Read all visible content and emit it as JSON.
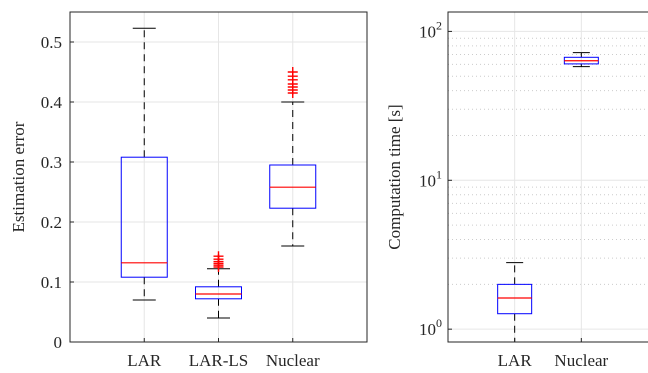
{
  "chart_data": [
    {
      "type": "box",
      "ylabel": "Estimation error",
      "ylim": [
        0,
        0.55
      ],
      "yticks": [
        0,
        0.1,
        0.2,
        0.3,
        0.4,
        0.5
      ],
      "ytick_labels": [
        "0",
        "0.1",
        "0.2",
        "0.3",
        "0.4",
        "0.5"
      ],
      "grid": true,
      "categories": [
        "LAR",
        "LAR-LS",
        "Nuclear"
      ],
      "boxes": [
        {
          "whisker_low": 0.07,
          "q1": 0.108,
          "median": 0.132,
          "q3": 0.308,
          "whisker_high": 0.523,
          "outliers": []
        },
        {
          "whisker_low": 0.04,
          "q1": 0.072,
          "median": 0.08,
          "q3": 0.092,
          "whisker_high": 0.122,
          "outliers": [
            0.125,
            0.128,
            0.131,
            0.134,
            0.138,
            0.143
          ]
        },
        {
          "whisker_low": 0.16,
          "q1": 0.223,
          "median": 0.258,
          "q3": 0.295,
          "whisker_high": 0.4,
          "outliers": [
            0.415,
            0.42,
            0.425,
            0.43,
            0.437,
            0.443,
            0.45
          ]
        }
      ]
    },
    {
      "type": "box",
      "ylabel": "Computation time [s]",
      "yscale": "log",
      "ylim": [
        0.82,
        135
      ],
      "yticks": [
        1,
        10,
        100
      ],
      "ytick_labels": [
        "10^0",
        "10^1",
        "10^2"
      ],
      "grid": true,
      "categories": [
        "LAR",
        "Nuclear"
      ],
      "boxes": [
        {
          "whisker_low": 0.82,
          "q1": 1.27,
          "median": 1.62,
          "q3": 2.0,
          "whisker_high": 2.8,
          "outliers": []
        },
        {
          "whisker_low": 58,
          "q1": 60.5,
          "median": 63.5,
          "q3": 67,
          "whisker_high": 72,
          "outliers": []
        }
      ]
    }
  ],
  "colors": {
    "box": "#0000ff",
    "median": "#ff0000",
    "whisker": "#000000",
    "outlier": "#ff0000"
  }
}
